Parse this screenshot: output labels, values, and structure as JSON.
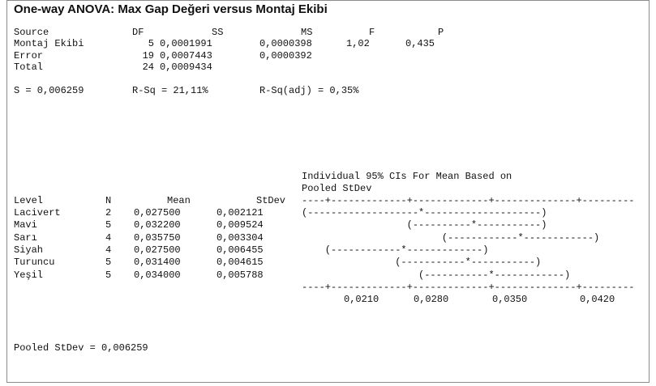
{
  "title": "One-way ANOVA: Max Gap Değeri versus Montaj Ekibi",
  "anova": {
    "header": [
      "Source",
      "DF",
      "SS",
      "MS",
      "F",
      "P"
    ],
    "rows": [
      [
        "Montaj Ekibi",
        "5",
        "0,0001991",
        "0,0000398",
        "1,02",
        "0,435"
      ],
      [
        "Error",
        "19",
        "0,0007443",
        "0,0000392"
      ],
      [
        "Total",
        "24",
        "0,0009434"
      ]
    ]
  },
  "fit": [
    "S = 0,006259",
    "R-Sq = 21,11%",
    "R-Sq(adj) = 0,35%"
  ],
  "ci_title": [
    "Individual 95% CIs For Mean Based on",
    "Pooled StDev"
  ],
  "levels": {
    "header": [
      "Level",
      "N",
      "Mean",
      "StDev"
    ],
    "ci_axis": "----+-------------+-------------+--------------+---------",
    "rows": [
      [
        "Lacivert",
        "2",
        "0,027500",
        "0,002121",
        "(-------------------*--------------------)"
      ],
      [
        "Mavi",
        "5",
        "0,032200",
        "0,009524",
        "                  (----------*-----------)"
      ],
      [
        "Sarı",
        "4",
        "0,035750",
        "0,003304",
        "                        (------------*------------)"
      ],
      [
        "Siyah",
        "4",
        "0,027500",
        "0,006455",
        "    (------------*-------------)"
      ],
      [
        "Turuncu",
        "5",
        "0,031400",
        "0,004615",
        "                (-----------*-----------)"
      ],
      [
        "Yeşil",
        "5",
        "0,034000",
        "0,005788",
        "                    (-----------*------------)"
      ]
    ],
    "ci_ticks": [
      "0,0210",
      "0,0280",
      "0,0350",
      "0,0420"
    ]
  },
  "pooled": "Pooled StDev = 0,006259"
}
